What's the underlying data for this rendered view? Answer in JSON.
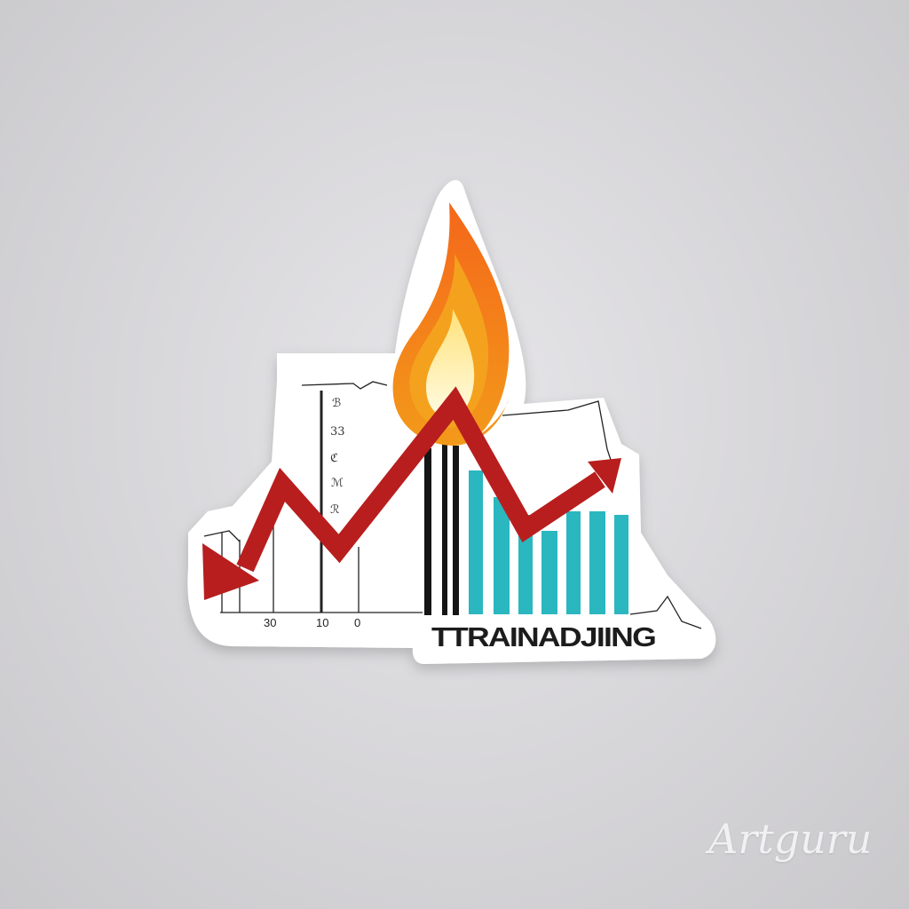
{
  "sticker": {
    "brand_text": "TTRAINADJIING",
    "axis_ticks": [
      "30",
      "10",
      "0"
    ],
    "side_glyphs": [
      "ℬ",
      "33",
      "ℭ",
      "ℳ",
      "ℛ"
    ],
    "colors": {
      "arrow": "#b81e1e",
      "bars": "#2ab7c0",
      "flame_outer": "#f07a12",
      "flame_mid": "#fbb42a",
      "flame_core": "#fff7c2",
      "background": "#d8d7da"
    },
    "arrow_icon": "trend-arrow-icon",
    "flame_icon": "flame-icon"
  },
  "watermark": "Artguru"
}
